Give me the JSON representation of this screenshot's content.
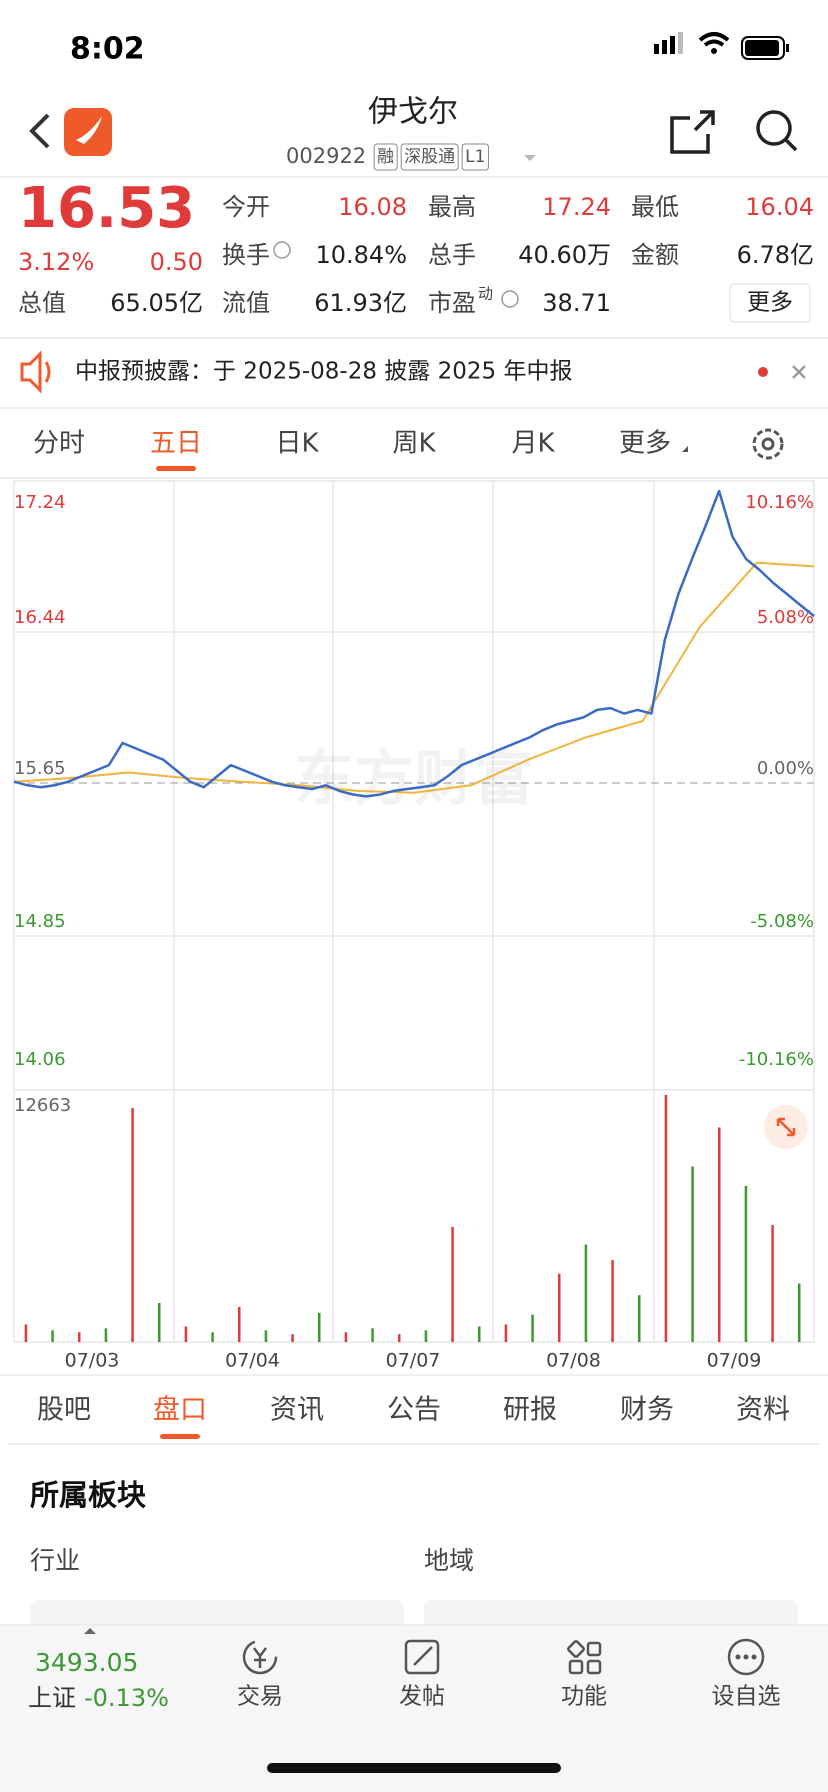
{
  "status": {
    "time": "8:02"
  },
  "header": {
    "title": "伊戈尔",
    "code": "002922",
    "tags": [
      "融",
      "深股通",
      "L1"
    ]
  },
  "quote": {
    "price": "16.53",
    "change_pct": "3.12%",
    "change": "0.50",
    "rows": [
      [
        {
          "label": "今开",
          "value": "16.08"
        },
        {
          "label": "最高",
          "value": "17.24"
        },
        {
          "label": "最低",
          "value": "16.04"
        }
      ],
      [
        {
          "label": "换手",
          "value": "10.84%"
        },
        {
          "label": "总手",
          "value": "40.60万"
        },
        {
          "label": "金额",
          "value": "6.78亿"
        }
      ]
    ],
    "row3": [
      {
        "label": "总值",
        "value": "65.05亿"
      },
      {
        "label": "流值",
        "value": "61.93亿"
      },
      {
        "label": "市盈",
        "sup": "动",
        "value": "38.71"
      }
    ],
    "more": "更多"
  },
  "notice": {
    "text": "中报预披露：于 2025-08-28 披露 2025 年中报"
  },
  "chart_tabs": {
    "items": [
      "分时",
      "五日",
      "日K",
      "周K",
      "月K",
      "更多"
    ],
    "active": 1
  },
  "chart": {
    "type": "line",
    "watermark": "东方财富",
    "ylim": [
      14.06,
      17.24
    ],
    "left_labels": [
      "17.24",
      "16.44",
      "15.65",
      "14.85",
      "14.06"
    ],
    "right_labels": [
      "10.16%",
      "5.08%",
      "0.00%",
      "-5.08%",
      "-10.16%"
    ],
    "dates": [
      "07/03",
      "07/04",
      "07/07",
      "07/08",
      "07/09"
    ],
    "price_color": "#3a6bc4",
    "avg_color": "#f0b43c",
    "price": [
      15.66,
      15.64,
      15.63,
      15.64,
      15.66,
      15.69,
      15.72,
      15.75,
      15.87,
      15.84,
      15.81,
      15.78,
      15.72,
      15.66,
      15.63,
      15.69,
      15.75,
      15.72,
      15.69,
      15.66,
      15.64,
      15.63,
      15.62,
      15.64,
      15.61,
      15.59,
      15.58,
      15.59,
      15.61,
      15.62,
      15.63,
      15.64,
      15.69,
      15.75,
      15.78,
      15.81,
      15.84,
      15.87,
      15.9,
      15.94,
      15.97,
      15.99,
      16.01,
      16.05,
      16.06,
      16.03,
      16.05,
      16.03,
      16.43,
      16.68,
      16.87,
      17.05,
      17.24,
      16.99,
      16.87,
      16.81,
      16.74,
      16.68,
      16.62,
      16.56
    ],
    "avg": [
      15.66,
      15.68,
      15.71,
      15.68,
      15.66,
      15.64,
      15.61,
      15.6,
      15.64,
      15.78,
      15.9,
      15.99,
      16.5,
      16.85,
      16.83
    ],
    "volume_max_label": "12663",
    "volume_ylim": [
      0,
      12663
    ],
    "volume_colors": [
      "#e03a3a",
      "#3a9a30"
    ],
    "volume": [
      900,
      600,
      500,
      700,
      12000,
      2000,
      800,
      500,
      1800,
      600,
      400,
      1500,
      500,
      700,
      400,
      600,
      5900,
      800,
      900,
      1400,
      3500,
      5000,
      4200,
      2400,
      12663,
      9000,
      11000,
      8000,
      6000,
      3000
    ]
  },
  "detail_tabs": {
    "items": [
      "股吧",
      "盘口",
      "资讯",
      "公告",
      "研报",
      "财务",
      "资料"
    ],
    "active": 1
  },
  "section": {
    "title": "所属板块",
    "col1": "行业",
    "col2": "地域"
  },
  "index": {
    "value": "3493.05",
    "name": "上证",
    "change": "-0.13%"
  },
  "bottom_nav": [
    "交易",
    "发帖",
    "功能",
    "设自选"
  ]
}
